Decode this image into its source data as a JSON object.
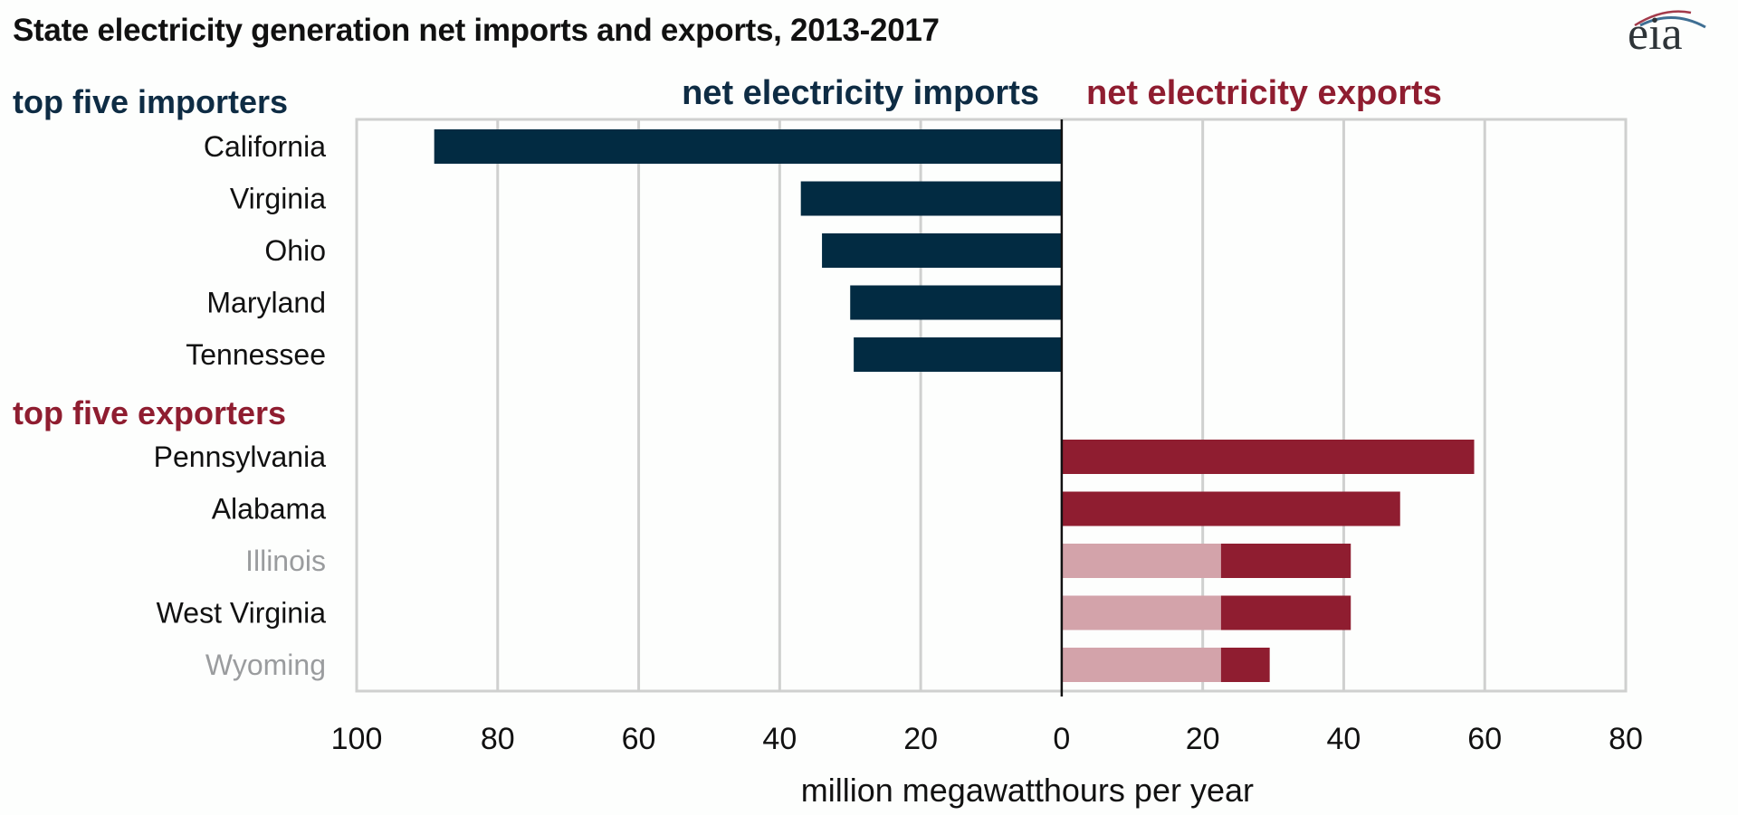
{
  "chart_data": {
    "type": "bar",
    "orientation": "horizontal",
    "title": "State electricity generation net imports and exports, 2013-2017",
    "xlabel": "million megawatthours per year",
    "ylabel": "",
    "xlim": [
      -100,
      80
    ],
    "x_ticks": [
      -100,
      -80,
      -60,
      -40,
      -20,
      0,
      20,
      40,
      60,
      80
    ],
    "x_tick_labels": [
      "100",
      "80",
      "60",
      "40",
      "20",
      "0",
      "20",
      "40",
      "60",
      "80"
    ],
    "grid": "vertical",
    "side_labels": {
      "left": "net electricity imports",
      "right": "net electricity exports"
    },
    "groups": [
      {
        "name": "top five importers",
        "color": "#022b42",
        "categories": [
          "California",
          "Virginia",
          "Ohio",
          "Maryland",
          "Tennessee"
        ],
        "values": [
          -89,
          -37,
          -34,
          -30,
          -29.5
        ]
      },
      {
        "name": "top five exporters",
        "color": "#8f1d30",
        "categories": [
          "Pennsylvania",
          "Alabama",
          "Illinois",
          "West Virginia",
          "Wyoming"
        ],
        "values": [
          58.5,
          48,
          41,
          41,
          29.5
        ],
        "highlight_overlay": {
          "color": "#d3a3aa",
          "categories": [
            "Illinois",
            "West Virginia",
            "Wyoming"
          ],
          "values": [
            22.6,
            22.6,
            22.6
          ]
        },
        "muted_label_categories": [
          "Illinois",
          "Wyoming"
        ]
      }
    ]
  },
  "logo": {
    "text": "eia",
    "name": "eia-logo"
  },
  "colors": {
    "imports": "#022b42",
    "exports": "#8f1d30",
    "exports_light": "#d3a3aa",
    "grid": "#cfd0cf",
    "zero_line": "#111111"
  }
}
